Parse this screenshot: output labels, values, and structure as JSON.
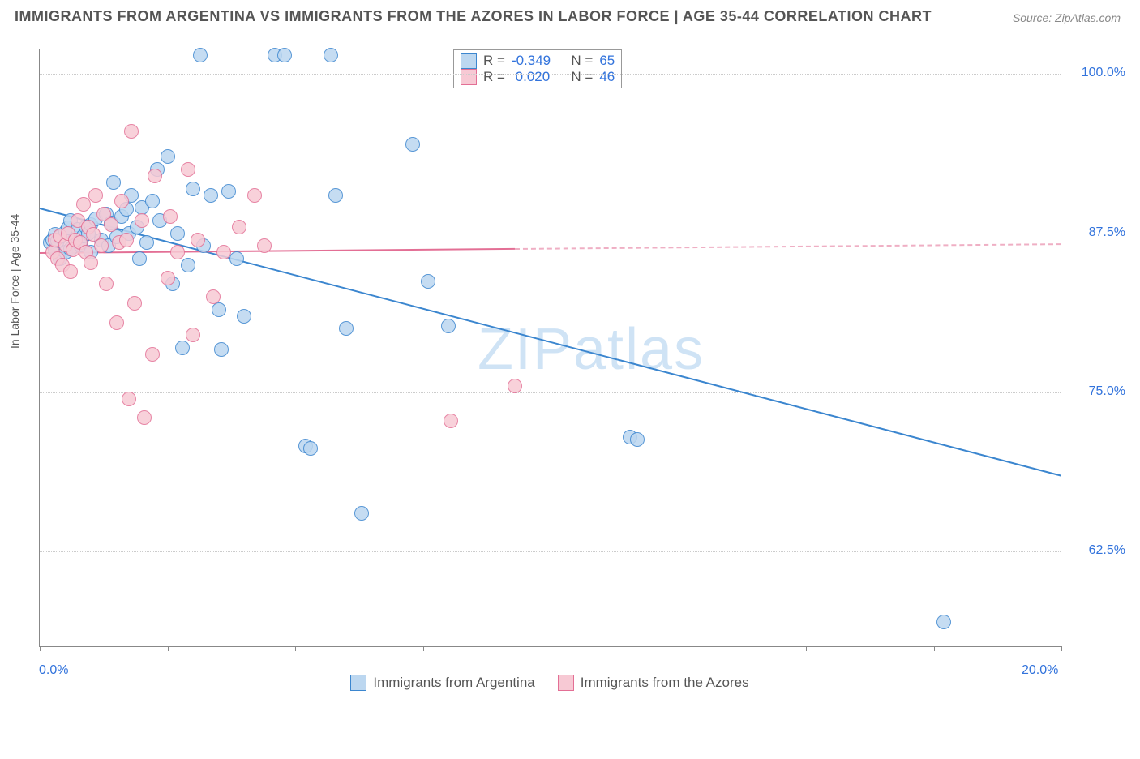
{
  "title": "IMMIGRANTS FROM ARGENTINA VS IMMIGRANTS FROM THE AZORES IN LABOR FORCE | AGE 35-44 CORRELATION CHART",
  "source": "Source: ZipAtlas.com",
  "ylabel": "In Labor Force | Age 35-44",
  "watermark": {
    "zip": "ZIP",
    "atlas": "atlas"
  },
  "chart": {
    "type": "scatter",
    "background_color": "#ffffff",
    "grid_color": "#cccccc",
    "axis_color": "#888888",
    "text_color": "#555555",
    "value_color": "#3273dc",
    "xlim": [
      0,
      20
    ],
    "ylim": [
      55,
      102
    ],
    "xticks": [
      0,
      2.5,
      5,
      7.5,
      10,
      12.5,
      15,
      17.5,
      20
    ],
    "xtick_labels": {
      "0": "0.0%",
      "20": "20.0%"
    },
    "yticks": [
      62.5,
      75.0,
      87.5,
      100.0
    ],
    "ytick_labels": [
      "62.5%",
      "75.0%",
      "87.5%",
      "100.0%"
    ],
    "marker_size": 18,
    "line_width": 2,
    "label_fontsize": 14,
    "tick_fontsize": 16,
    "title_fontsize": 18
  },
  "legend_stats": {
    "rows": [
      {
        "swatch_fill": "#bcd7f0",
        "swatch_border": "#3b86cf",
        "r_label": "R =",
        "r_val": "-0.349",
        "n_label": "N =",
        "n_val": "65"
      },
      {
        "swatch_fill": "#f7c9d4",
        "swatch_border": "#e36f95",
        "r_label": "R =",
        "r_val": " 0.020",
        "n_label": "N =",
        "n_val": "46"
      }
    ]
  },
  "series_legend": [
    {
      "swatch_fill": "#bcd7f0",
      "swatch_border": "#3b86cf",
      "label": "Immigrants from Argentina"
    },
    {
      "swatch_fill": "#f7c9d4",
      "swatch_border": "#e36f95",
      "label": "Immigrants from the Azores"
    }
  ],
  "series": [
    {
      "name": "argentina",
      "fill": "#bcd7f0",
      "border": "#3b86cf",
      "regression": {
        "color": "#3b86cf",
        "x1": 0,
        "y1": 89.5,
        "x2": 20,
        "y2": 68.5,
        "dash_from_x": null
      },
      "points": [
        [
          0.2,
          86.8
        ],
        [
          0.25,
          87.0
        ],
        [
          0.3,
          86.2
        ],
        [
          0.3,
          87.4
        ],
        [
          0.35,
          86.9
        ],
        [
          0.4,
          87.2
        ],
        [
          0.4,
          85.5
        ],
        [
          0.5,
          87.6
        ],
        [
          0.5,
          86.0
        ],
        [
          0.55,
          87.9
        ],
        [
          0.6,
          86.3
        ],
        [
          0.6,
          88.5
        ],
        [
          0.7,
          87.1
        ],
        [
          0.75,
          87.8
        ],
        [
          0.8,
          86.6
        ],
        [
          0.85,
          87.3
        ],
        [
          0.9,
          88.0
        ],
        [
          0.95,
          87.5
        ],
        [
          1.0,
          88.2
        ],
        [
          1.0,
          86.0
        ],
        [
          1.1,
          88.6
        ],
        [
          1.2,
          87.0
        ],
        [
          1.3,
          89.0
        ],
        [
          1.35,
          86.5
        ],
        [
          1.4,
          88.3
        ],
        [
          1.45,
          91.5
        ],
        [
          1.5,
          87.2
        ],
        [
          1.6,
          88.8
        ],
        [
          1.7,
          89.4
        ],
        [
          1.75,
          87.5
        ],
        [
          1.8,
          90.5
        ],
        [
          1.9,
          88.0
        ],
        [
          1.95,
          85.5
        ],
        [
          2.0,
          89.5
        ],
        [
          2.1,
          86.8
        ],
        [
          2.2,
          90.0
        ],
        [
          2.3,
          92.5
        ],
        [
          2.35,
          88.5
        ],
        [
          2.5,
          93.5
        ],
        [
          2.6,
          83.5
        ],
        [
          2.7,
          87.5
        ],
        [
          2.8,
          78.5
        ],
        [
          2.9,
          85.0
        ],
        [
          3.0,
          91.0
        ],
        [
          3.15,
          101.5
        ],
        [
          3.2,
          86.5
        ],
        [
          3.35,
          90.5
        ],
        [
          3.5,
          81.5
        ],
        [
          3.55,
          78.4
        ],
        [
          3.7,
          90.8
        ],
        [
          3.85,
          85.5
        ],
        [
          4.0,
          81.0
        ],
        [
          4.6,
          101.5
        ],
        [
          4.8,
          101.5
        ],
        [
          5.2,
          70.8
        ],
        [
          5.3,
          70.6
        ],
        [
          5.7,
          101.5
        ],
        [
          5.8,
          90.5
        ],
        [
          6.0,
          80.0
        ],
        [
          6.3,
          65.5
        ],
        [
          7.3,
          94.5
        ],
        [
          7.6,
          83.7
        ],
        [
          8.0,
          80.2
        ],
        [
          11.55,
          71.5
        ],
        [
          11.7,
          71.3
        ],
        [
          17.7,
          57.0
        ]
      ]
    },
    {
      "name": "azores",
      "fill": "#f7c9d4",
      "border": "#e36f95",
      "regression": {
        "color": "#e36f95",
        "x1": 0,
        "y1": 86.0,
        "x2": 20,
        "y2": 86.7,
        "dash_from_x": 9.3
      },
      "points": [
        [
          0.25,
          86.0
        ],
        [
          0.3,
          87.0
        ],
        [
          0.35,
          85.5
        ],
        [
          0.4,
          87.3
        ],
        [
          0.45,
          85.0
        ],
        [
          0.5,
          86.6
        ],
        [
          0.55,
          87.5
        ],
        [
          0.6,
          84.5
        ],
        [
          0.65,
          86.2
        ],
        [
          0.7,
          87.0
        ],
        [
          0.75,
          88.5
        ],
        [
          0.8,
          86.8
        ],
        [
          0.85,
          89.8
        ],
        [
          0.9,
          86.0
        ],
        [
          0.95,
          88.0
        ],
        [
          1.0,
          85.2
        ],
        [
          1.05,
          87.4
        ],
        [
          1.1,
          90.5
        ],
        [
          1.2,
          86.5
        ],
        [
          1.25,
          89.0
        ],
        [
          1.3,
          83.5
        ],
        [
          1.4,
          88.2
        ],
        [
          1.5,
          80.5
        ],
        [
          1.55,
          86.8
        ],
        [
          1.6,
          90.0
        ],
        [
          1.7,
          87.0
        ],
        [
          1.75,
          74.5
        ],
        [
          1.8,
          95.5
        ],
        [
          1.85,
          82.0
        ],
        [
          2.0,
          88.5
        ],
        [
          2.05,
          73.0
        ],
        [
          2.2,
          78.0
        ],
        [
          2.25,
          92.0
        ],
        [
          2.5,
          84.0
        ],
        [
          2.55,
          88.8
        ],
        [
          2.7,
          86.0
        ],
        [
          2.9,
          92.5
        ],
        [
          3.0,
          79.5
        ],
        [
          3.1,
          87.0
        ],
        [
          3.4,
          82.5
        ],
        [
          3.6,
          86.0
        ],
        [
          3.9,
          88.0
        ],
        [
          4.2,
          90.5
        ],
        [
          4.4,
          86.5
        ],
        [
          8.05,
          72.8
        ],
        [
          9.3,
          75.5
        ]
      ]
    }
  ]
}
